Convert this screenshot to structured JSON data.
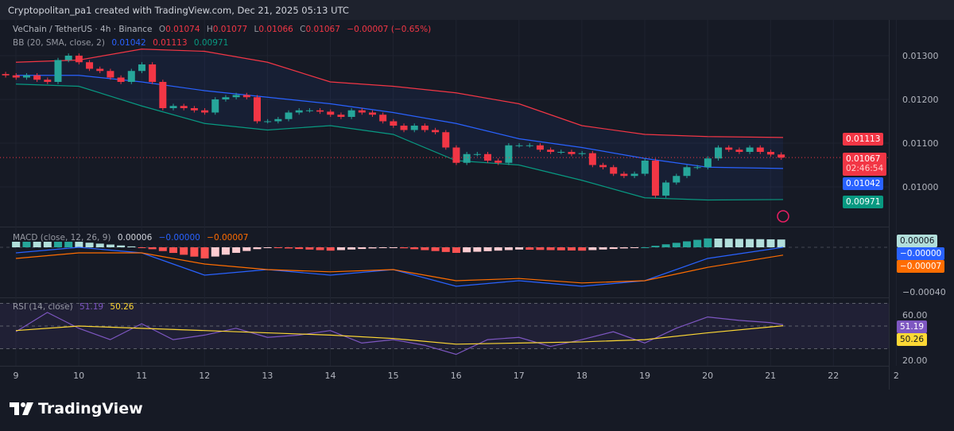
{
  "header": {
    "title": "Cryptopolitan_pa1 created with TradingView.com, Dec 21, 2025 05:13 UTC"
  },
  "legend": {
    "symbol": "VeChain / TetherUS · 4h · Binance",
    "o_label": "O",
    "o": "0.01074",
    "h_label": "H",
    "h": "0.01077",
    "l_label": "L",
    "l": "0.01066",
    "c_label": "C",
    "c": "0.01067",
    "change": "−0.00007 (−0.65%)",
    "bb_label": "BB (20, SMA, close, 2)",
    "bb_basis": "0.01042",
    "bb_upper": "0.01113",
    "bb_lower": "0.00971",
    "macd_label": "MACD (close, 12, 26, 9)",
    "macd_hist": "0.00006",
    "macd": "−0.00000",
    "macd_signal": "−0.00007",
    "rsi_label": "RSI (14, close)",
    "rsi": "51.19",
    "rsi_ma": "50.26"
  },
  "tags": {
    "bb_upper": "0.01113",
    "price": "0.01067",
    "countdown": "02:46:54",
    "bb_basis": "0.01042",
    "bb_lower": "0.00971",
    "macd_hist": "0.00006",
    "macd": "−0.00000",
    "macd_signal": "−0.00007",
    "rsi": "51.19",
    "rsi_ma": "50.26"
  },
  "colors": {
    "up": "#26a69a",
    "down": "#f23645",
    "bb_basis": "#2962ff",
    "bb_upper": "#f23645",
    "bb_lower": "#089981",
    "macd": "#2962ff",
    "signal": "#ff6d00",
    "rsi": "#7e57c2",
    "rsi_ma": "#fdd835",
    "bg": "#161a25"
  },
  "logo": {
    "text": "TradingView"
  },
  "chart_data": {
    "type": "candlestick",
    "x_ticks": [
      "9",
      "10",
      "11",
      "12",
      "13",
      "14",
      "15",
      "16",
      "17",
      "18",
      "19",
      "20",
      "21",
      "22",
      "2"
    ],
    "price_ticks": [
      "0.01300",
      "0.01200",
      "0.01100",
      "0.01000"
    ],
    "macd_ticks": [
      "−0.00040"
    ],
    "rsi_ticks": [
      "60.00",
      "20.00"
    ],
    "closes": [
      0.01255,
      0.0125,
      0.01255,
      0.01245,
      0.0124,
      0.0129,
      0.013,
      0.01285,
      0.0127,
      0.01265,
      0.0125,
      0.0124,
      0.01265,
      0.0128,
      0.0124,
      0.0118,
      0.01185,
      0.0118,
      0.01175,
      0.0117,
      0.012,
      0.01205,
      0.0121,
      0.01205,
      0.0115,
      0.0115,
      0.01155,
      0.0117,
      0.01175,
      0.01175,
      0.01172,
      0.01165,
      0.0116,
      0.01175,
      0.0117,
      0.01165,
      0.0115,
      0.0114,
      0.0113,
      0.0114,
      0.0113,
      0.01125,
      0.0109,
      0.01055,
      0.01075,
      0.01075,
      0.0106,
      0.01055,
      0.01095,
      0.01095,
      0.01095,
      0.01085,
      0.0108,
      0.0108,
      0.01075,
      0.01077,
      0.0105,
      0.01045,
      0.0103,
      0.01025,
      0.0103,
      0.0106,
      0.0098,
      0.0101,
      0.01025,
      0.01045,
      0.01045,
      0.01065,
      0.0109,
      0.01085,
      0.0108,
      0.0109,
      0.0108,
      0.01074,
      0.01067
    ],
    "bb": {
      "days": [
        9,
        10,
        11,
        12,
        13,
        14,
        15,
        16,
        17,
        18,
        19,
        20,
        21.2
      ],
      "upper": [
        0.01285,
        0.0129,
        0.01315,
        0.0131,
        0.01285,
        0.0124,
        0.0123,
        0.01215,
        0.0119,
        0.0114,
        0.0112,
        0.01115,
        0.01113
      ],
      "basis": [
        0.01255,
        0.01255,
        0.0124,
        0.0122,
        0.01205,
        0.0119,
        0.0117,
        0.01145,
        0.0111,
        0.0109,
        0.01065,
        0.01045,
        0.01042
      ],
      "lower": [
        0.01235,
        0.0123,
        0.01185,
        0.01145,
        0.0113,
        0.0114,
        0.0112,
        0.0106,
        0.0105,
        0.01015,
        0.00975,
        0.0097,
        0.00971
      ]
    },
    "macd": {
      "days": [
        9,
        10,
        11,
        12,
        13,
        14,
        15,
        16,
        17,
        18,
        19,
        20,
        21.2
      ],
      "macd": [
        -5e-05,
        0,
        -5e-05,
        -0.00025,
        -0.0002,
        -0.00025,
        -0.0002,
        -0.00035,
        -0.0003,
        -0.00035,
        -0.0003,
        -0.0001,
        0
      ],
      "signal": [
        -0.0001,
        -5e-05,
        -5e-05,
        -0.00015,
        -0.0002,
        -0.00022,
        -0.0002,
        -0.0003,
        -0.00028,
        -0.00032,
        -0.0003,
        -0.00018,
        -7e-05
      ]
    },
    "rsi": {
      "days": [
        9,
        9.5,
        10,
        10.5,
        11,
        11.5,
        12,
        12.5,
        13,
        13.5,
        14,
        14.5,
        15,
        15.5,
        16,
        16.5,
        17,
        17.5,
        18,
        18.5,
        19,
        19.5,
        20,
        20.5,
        21,
        21.2
      ],
      "rsi": [
        45,
        62,
        48,
        38,
        52,
        38,
        42,
        48,
        40,
        42,
        46,
        35,
        38,
        33,
        25,
        38,
        40,
        32,
        38,
        45,
        35,
        48,
        58,
        55,
        53,
        51.19
      ],
      "ma_days": [
        9,
        10,
        11,
        12,
        13,
        14,
        15,
        16,
        17,
        18,
        19,
        20,
        21.2
      ],
      "ma": [
        46,
        50,
        48,
        46,
        44,
        42,
        39,
        34,
        35,
        36,
        38,
        44,
        50.26
      ],
      "bands": [
        70,
        50,
        30
      ]
    }
  }
}
